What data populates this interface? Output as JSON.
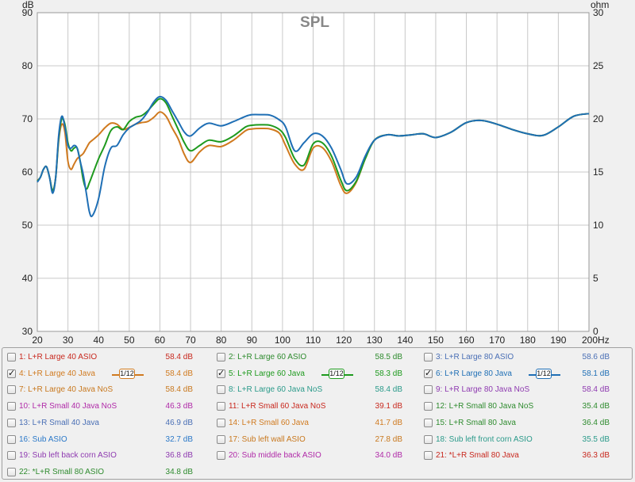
{
  "chart_data": {
    "type": "line",
    "title": "SPL",
    "ylabel": "dB",
    "y2label": "ohm",
    "xunit": "Hz",
    "xlim": [
      20,
      200
    ],
    "ylim": [
      30,
      90
    ],
    "y2lim": [
      0,
      30
    ],
    "grid": true,
    "xticks": [
      20,
      30,
      40,
      50,
      60,
      70,
      80,
      90,
      100,
      110,
      120,
      130,
      140,
      150,
      160,
      170,
      180,
      190,
      200
    ],
    "yticks": [
      30,
      40,
      50,
      60,
      70,
      80,
      90
    ],
    "y2ticks": [
      0,
      5,
      10,
      15,
      20,
      25,
      30
    ],
    "series": [
      {
        "name": "4: L+R Large 40 Java",
        "color": "#d07a1f",
        "x": [
          20,
          21,
          22,
          23,
          24,
          25,
          26,
          27,
          28,
          29,
          30,
          31,
          32,
          33,
          34,
          35,
          36,
          37,
          38,
          40,
          42,
          44,
          46,
          48,
          50,
          52,
          54,
          56,
          58,
          60,
          62,
          64,
          66,
          68,
          70,
          73,
          76,
          80,
          84,
          88,
          90,
          93,
          96,
          99,
          101,
          104,
          107,
          110,
          113,
          116,
          119,
          121,
          124,
          127,
          130,
          134,
          138,
          142,
          146,
          150,
          155,
          160,
          165,
          170,
          175,
          180,
          185,
          190,
          195,
          200
        ],
        "y": [
          58.4,
          59.0,
          60.5,
          61.0,
          59.0,
          56.5,
          59.0,
          66.0,
          69.0,
          67.5,
          62.0,
          60.5,
          61.5,
          62.5,
          63.0,
          63.5,
          64.5,
          65.5,
          66.0,
          67.0,
          68.3,
          69.2,
          69.0,
          68.0,
          68.4,
          69.0,
          69.3,
          69.5,
          70.3,
          71.3,
          70.5,
          68.3,
          66.2,
          63.3,
          61.8,
          63.8,
          65.0,
          64.8,
          66.0,
          67.8,
          68.1,
          68.2,
          68.1,
          67.3,
          65.0,
          61.5,
          60.5,
          64.5,
          64.6,
          62.0,
          57.5,
          56.0,
          58.0,
          62.5,
          66.0,
          67.0,
          66.8,
          67.0,
          67.2,
          66.5,
          67.5,
          69.3,
          69.7,
          69.0,
          68.0,
          67.2,
          66.9,
          68.5,
          70.5,
          71.0
        ]
      },
      {
        "name": "5: L+R Large 60 Java",
        "color": "#1e9a1e",
        "x": [
          20,
          21,
          22,
          23,
          24,
          25,
          26,
          27,
          28,
          29,
          30,
          31,
          32,
          33,
          34,
          35,
          36,
          37,
          38,
          40,
          42,
          44,
          46,
          48,
          50,
          52,
          54,
          56,
          58,
          60,
          62,
          64,
          66,
          68,
          70,
          73,
          76,
          80,
          84,
          88,
          90,
          93,
          96,
          99,
          101,
          104,
          107,
          110,
          113,
          116,
          119,
          121,
          124,
          127,
          130,
          134,
          138,
          142,
          146,
          150,
          155,
          160,
          165,
          170,
          175,
          180,
          185,
          190,
          195,
          200
        ],
        "y": [
          58.3,
          59.0,
          60.5,
          61.0,
          59.0,
          56.5,
          59.0,
          66.5,
          70.0,
          69.0,
          65.5,
          64.0,
          64.5,
          64.5,
          62.0,
          58.5,
          56.8,
          58.0,
          59.5,
          62.5,
          65.0,
          67.8,
          68.5,
          68.0,
          69.5,
          70.3,
          70.6,
          71.5,
          72.8,
          73.8,
          73.0,
          70.5,
          68.0,
          65.5,
          64.0,
          65.0,
          66.0,
          65.7,
          66.8,
          68.5,
          68.8,
          68.9,
          68.8,
          68.0,
          66.5,
          62.5,
          61.3,
          65.3,
          65.5,
          63.0,
          58.5,
          56.5,
          58.2,
          62.5,
          66.0,
          67.0,
          66.8,
          67.0,
          67.2,
          66.5,
          67.5,
          69.3,
          69.7,
          69.0,
          68.0,
          67.2,
          66.9,
          68.5,
          70.5,
          71.0
        ]
      },
      {
        "name": "6: L+R Large 80 Java",
        "color": "#1f6fb5",
        "x": [
          20,
          21,
          22,
          23,
          24,
          25,
          26,
          27,
          28,
          29,
          30,
          31,
          32,
          33,
          34,
          35,
          36,
          37,
          38,
          40,
          42,
          44,
          46,
          48,
          50,
          52,
          54,
          56,
          58,
          60,
          62,
          64,
          66,
          68,
          70,
          73,
          76,
          80,
          84,
          88,
          90,
          93,
          96,
          99,
          101,
          104,
          107,
          110,
          113,
          116,
          119,
          121,
          124,
          127,
          130,
          134,
          138,
          142,
          146,
          150,
          155,
          160,
          165,
          170,
          175,
          180,
          185,
          190,
          195,
          200
        ],
        "y": [
          58.1,
          59.0,
          60.5,
          61.0,
          59.0,
          56.0,
          59.0,
          67.0,
          70.5,
          68.5,
          65.0,
          64.5,
          65.0,
          64.5,
          62.0,
          59.5,
          56.0,
          52.5,
          51.8,
          55.0,
          61.0,
          64.5,
          65.0,
          67.0,
          68.3,
          69.0,
          69.8,
          71.3,
          73.2,
          74.2,
          73.5,
          71.5,
          69.5,
          67.5,
          66.8,
          68.3,
          69.2,
          68.7,
          69.5,
          70.5,
          70.8,
          70.8,
          70.7,
          69.8,
          68.5,
          64.0,
          65.5,
          67.2,
          66.8,
          64.5,
          60.5,
          57.8,
          59.0,
          63.0,
          66.0,
          67.0,
          66.8,
          67.0,
          67.2,
          66.5,
          67.5,
          69.3,
          69.7,
          69.0,
          68.0,
          67.2,
          66.9,
          68.5,
          70.5,
          71.0
        ]
      }
    ]
  },
  "legend": {
    "items": [
      {
        "label": "1: L+R Large 40 ASIO",
        "value": "58.4 dB",
        "color": "#c8281e",
        "checked": false
      },
      {
        "label": "2: L+R Large 60 ASIO",
        "value": "58.5 dB",
        "color": "#2e8b2e",
        "checked": false
      },
      {
        "label": "3: L+R Large 80 ASIO",
        "value": "58.6 dB",
        "color": "#4a6fb5",
        "checked": false
      },
      {
        "label": "4: L+R Large 40 Java",
        "value": "58.4 dB",
        "color": "#d07a1f",
        "checked": true,
        "smoothing": "1/12"
      },
      {
        "label": "5: L+R Large 60 Java",
        "value": "58.3 dB",
        "color": "#1e9a1e",
        "checked": true,
        "smoothing": "1/12"
      },
      {
        "label": "6: L+R Large 80 Java",
        "value": "58.1 dB",
        "color": "#1f6fb5",
        "checked": true,
        "smoothing": "1/12"
      },
      {
        "label": "7: L+R Large 40 Java NoS",
        "value": "58.4 dB",
        "color": "#c8781e",
        "checked": false
      },
      {
        "label": "8: L+R Large 60 Java NoS",
        "value": "58.4 dB",
        "color": "#2a9a8a",
        "checked": false
      },
      {
        "label": "9: L+R Large 80 Java NoS",
        "value": "58.4 dB",
        "color": "#8e3ab0",
        "checked": false
      },
      {
        "label": "10: L+R Small 40 Java NoS",
        "value": "46.3 dB",
        "color": "#b02aa8",
        "checked": false
      },
      {
        "label": "11: L+R Small 60 Java NoS",
        "value": "39.1 dB",
        "color": "#c8281e",
        "checked": false
      },
      {
        "label": "12: L+R Small 80 Java NoS",
        "value": "35.4 dB",
        "color": "#2e8b2e",
        "checked": false
      },
      {
        "label": "13: L+R Small 40 Java",
        "value": "46.9 dB",
        "color": "#4a6fb5",
        "checked": false
      },
      {
        "label": "14: L+R Small 60 Java",
        "value": "41.7 dB",
        "color": "#d07a1f",
        "checked": false
      },
      {
        "label": "15: L+R Small 80 Java",
        "value": "36.4 dB",
        "color": "#2e8b2e",
        "checked": false
      },
      {
        "label": "16: Sub ASIO",
        "value": "32.7 dB",
        "color": "#2a78c8",
        "checked": false
      },
      {
        "label": "17: Sub left wall ASIO",
        "value": "27.8 dB",
        "color": "#c8781e",
        "checked": false
      },
      {
        "label": "18: Sub left front corn ASIO",
        "value": "35.5 dB",
        "color": "#2a9a8a",
        "checked": false
      },
      {
        "label": "19: Sub left back corn ASIO",
        "value": "36.8 dB",
        "color": "#8e3ab0",
        "checked": false
      },
      {
        "label": "20: Sub middle back ASIO",
        "value": "34.0 dB",
        "color": "#b02aa8",
        "checked": false
      },
      {
        "label": "21: *L+R Small 80 Java",
        "value": "36.3 dB",
        "color": "#c8281e",
        "checked": false
      },
      {
        "label": "22: *L+R Small 80 ASIO",
        "value": "34.8 dB",
        "color": "#2e8b2e",
        "checked": false
      }
    ]
  }
}
